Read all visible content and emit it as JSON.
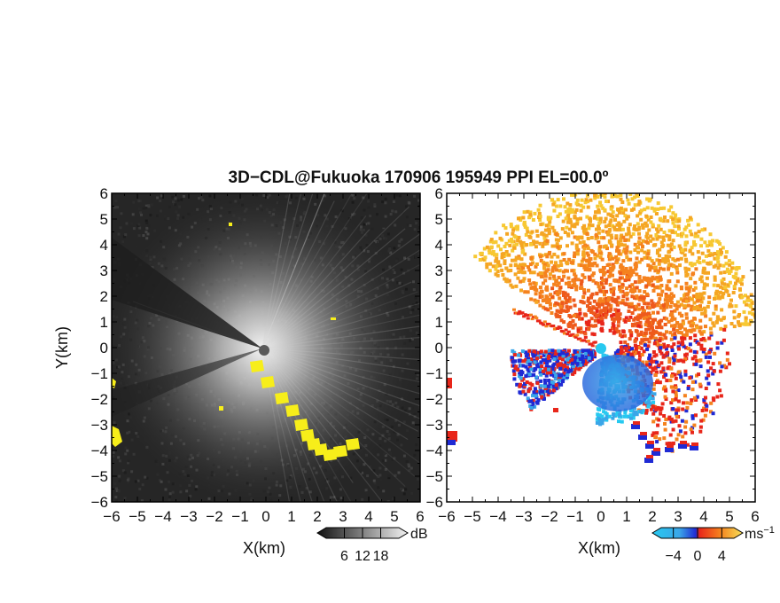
{
  "title": "3D−CDL@Fukuoka 170906 195949 PPI EL=00.0º",
  "colors": {
    "background": "#ffffff",
    "reflectivity_bg": "#262626",
    "reflectivity_bright": "#f0f0f0",
    "mask_yellow": "#f7ee1a",
    "velocity_blue": "#1f2ad4",
    "velocity_light_blue": "#3aa6e8",
    "velocity_cyan": "#27c9f0",
    "velocity_red": "#e8261a",
    "velocity_orange": "#f5821e",
    "velocity_yellow": "#f7c832"
  },
  "chart_data": [
    {
      "type": "heatmap",
      "subtype": "ppi-reflectivity",
      "xlabel": "X(km)",
      "ylabel": "Y(km)",
      "xlim": [
        -6,
        6
      ],
      "ylim": [
        -6,
        6
      ],
      "xticks": [
        "−6",
        "−5",
        "−4",
        "−3",
        "−2",
        "−1",
        "0",
        "1",
        "2",
        "3",
        "4",
        "5",
        "6"
      ],
      "yticks": [
        "6",
        "5",
        "4",
        "3",
        "2",
        "1",
        "0",
        "−1",
        "−2",
        "−3",
        "−4",
        "−5",
        "−6"
      ],
      "grid": false,
      "colormap": "grayscale",
      "colorbar": {
        "unit": "dB",
        "ticks": [
          "6",
          "12",
          "18"
        ],
        "tick_values": [
          6,
          12,
          18
        ],
        "range": [
          0,
          24
        ]
      },
      "masked_color": "yellow"
    },
    {
      "type": "heatmap",
      "subtype": "ppi-doppler-velocity",
      "xlabel": "X(km)",
      "ylabel": "",
      "xlim": [
        -6,
        6
      ],
      "ylim": [
        -6,
        6
      ],
      "xticks": [
        "−6",
        "−5",
        "−4",
        "−3",
        "−2",
        "−1",
        "0",
        "1",
        "2",
        "3",
        "4",
        "5",
        "6"
      ],
      "yticks": [
        "6",
        "5",
        "4",
        "3",
        "2",
        "1",
        "0",
        "−1",
        "−2",
        "−3",
        "−4",
        "−5",
        "−6"
      ],
      "grid": false,
      "colormap": "cyan-blue-red-orange-yellow",
      "colorbar": {
        "unit": "ms",
        "unit_exponent": "−1",
        "ticks": [
          "−4",
          "0",
          "4"
        ],
        "tick_values": [
          -4,
          0,
          4
        ],
        "range": [
          -6,
          6
        ]
      }
    }
  ]
}
